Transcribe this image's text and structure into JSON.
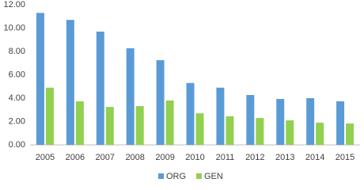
{
  "chart_data": {
    "type": "bar",
    "categories": [
      "2005",
      "2006",
      "2007",
      "2008",
      "2009",
      "2010",
      "2011",
      "2012",
      "2013",
      "2014",
      "2015"
    ],
    "series": [
      {
        "name": "ORG",
        "color": "#5b9bd5",
        "values": [
          11.3,
          10.7,
          9.7,
          8.27,
          7.25,
          5.3,
          4.9,
          4.27,
          3.93,
          4.0,
          3.73
        ]
      },
      {
        "name": "GEN",
        "color": "#92d050",
        "values": [
          4.9,
          3.73,
          3.25,
          3.32,
          3.8,
          2.7,
          2.45,
          2.3,
          2.1,
          1.9,
          1.83
        ]
      }
    ],
    "ylim": [
      0,
      12
    ],
    "yticks": [
      {
        "value": 0,
        "label": "0.00"
      },
      {
        "value": 2,
        "label": "2.00"
      },
      {
        "value": 4,
        "label": "4.00"
      },
      {
        "value": 6,
        "label": "6.00"
      },
      {
        "value": 8,
        "label": "8.00"
      },
      {
        "value": 10,
        "label": "10.00"
      },
      {
        "value": 12,
        "label": "12.00"
      }
    ],
    "grid": false,
    "legend": "bottom"
  }
}
